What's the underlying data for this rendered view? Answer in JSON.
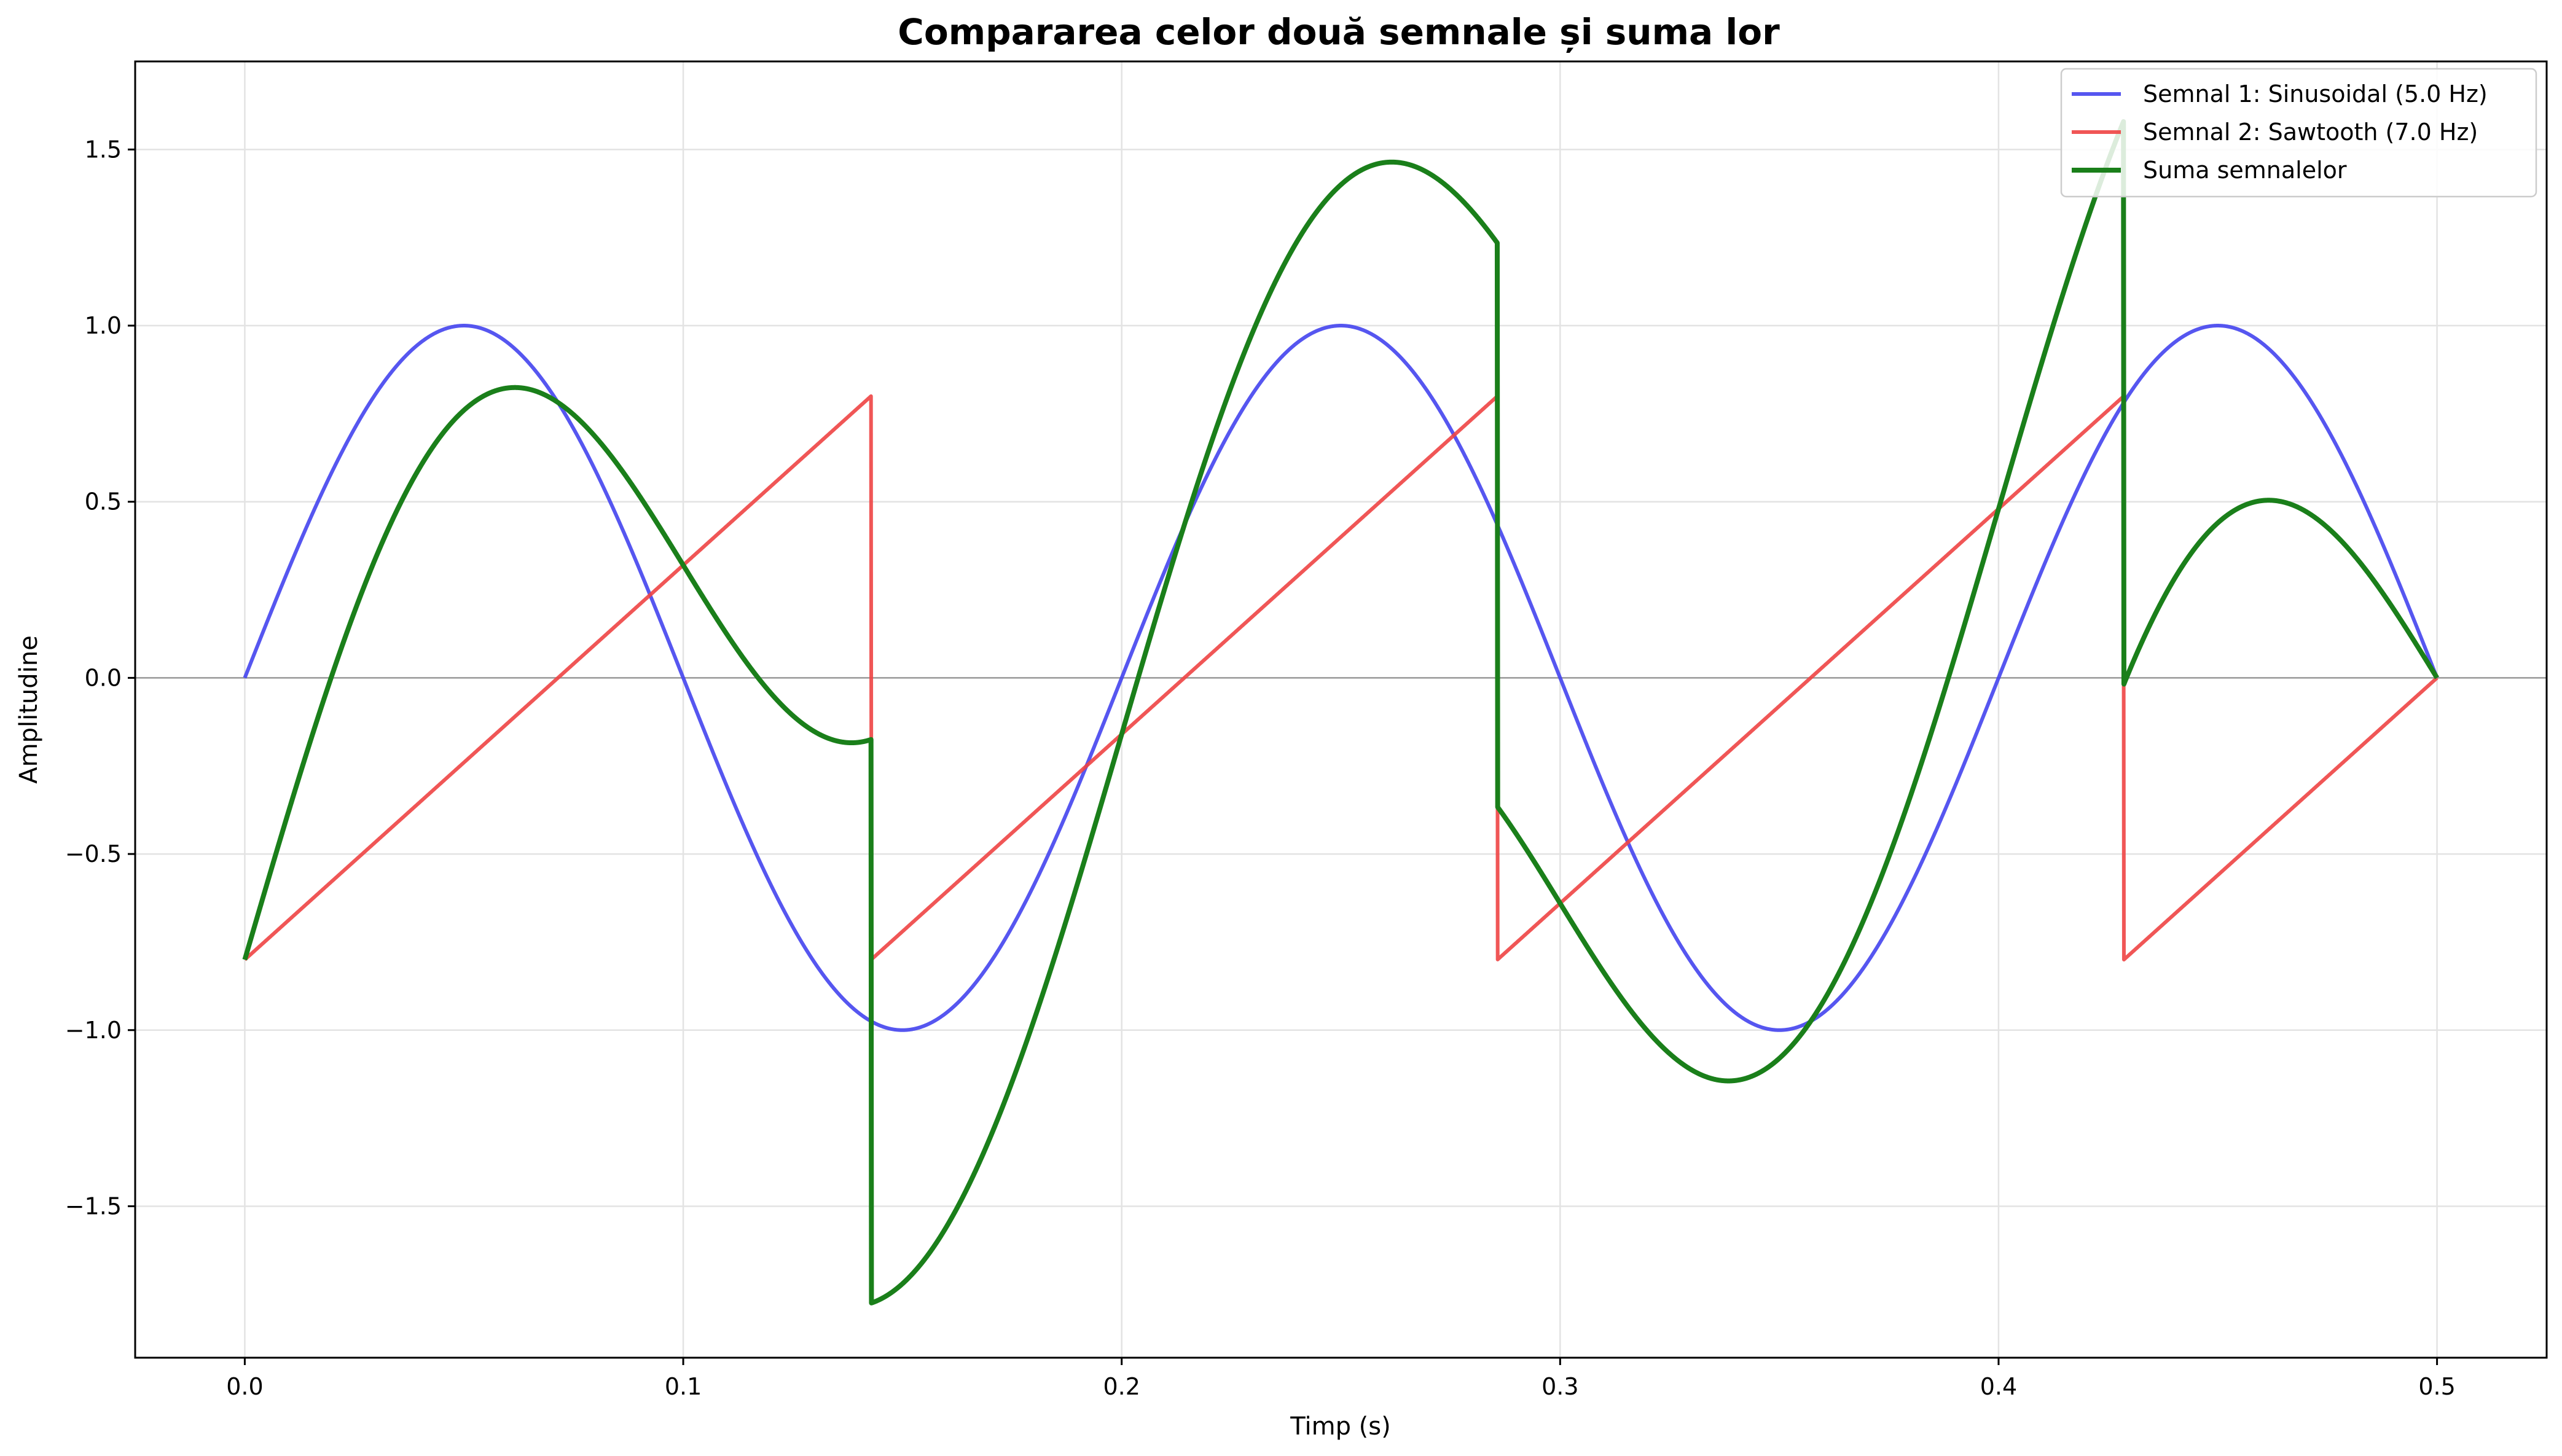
{
  "chart_data": {
    "type": "line",
    "title": "Compararea celor două semnale și suma lor",
    "xlabel": "Timp (s)",
    "ylabel": "Amplitudine",
    "xlim": [
      -0.025,
      0.525
    ],
    "ylim": [
      -1.93,
      1.75
    ],
    "xticks": [
      0.0,
      0.1,
      0.2,
      0.3,
      0.4,
      0.5
    ],
    "xtick_labels": [
      "0.0",
      "0.1",
      "0.2",
      "0.3",
      "0.4",
      "0.5"
    ],
    "yticks": [
      -1.5,
      -1.0,
      -0.5,
      0.0,
      0.5,
      1.0,
      1.5
    ],
    "ytick_labels": [
      "−1.5",
      "−1.0",
      "−0.5",
      "0.0",
      "0.5",
      "1.0",
      "1.5"
    ],
    "grid": true,
    "zero_line": true,
    "legend_position": "top-right",
    "x_range": [
      0.0,
      0.5
    ],
    "series": [
      {
        "name": "Semnal 1: Sinusoidal (5.0 Hz)",
        "kind": "sine",
        "frequency_hz": 5.0,
        "amplitude": 1.0,
        "color": "#4444ee"
      },
      {
        "name": "Semnal 2: Sawtooth (7.0 Hz)",
        "kind": "sawtooth",
        "frequency_hz": 7.0,
        "amplitude": 0.8,
        "color": "#ee4444"
      },
      {
        "name": "Suma semnalelor",
        "kind": "sum",
        "color": "#1a7f1a"
      }
    ]
  }
}
